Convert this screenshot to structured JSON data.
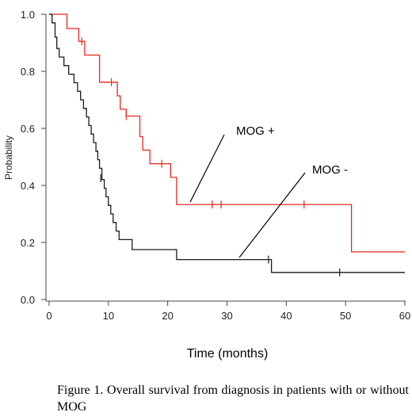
{
  "chart_data": {
    "type": "line",
    "title": "",
    "xlabel": "Time (months)",
    "ylabel": "Probability",
    "xlim": [
      0,
      60
    ],
    "ylim": [
      0,
      1.0
    ],
    "x_ticks": [
      0,
      10,
      20,
      30,
      40,
      50,
      60
    ],
    "y_ticks": [
      "0.0",
      "0.2",
      "0.4",
      "0.6",
      "0.8",
      "1.0"
    ],
    "grid": false,
    "legend": "none",
    "series": [
      {
        "name": "MOG +",
        "color": "#e8271f",
        "step": [
          [
            0,
            1.0
          ],
          [
            3,
            1.0
          ],
          [
            3,
            0.95
          ],
          [
            5,
            0.95
          ],
          [
            5,
            0.905
          ],
          [
            6,
            0.905
          ],
          [
            6,
            0.857
          ],
          [
            8.5,
            0.857
          ],
          [
            8.5,
            0.762
          ],
          [
            11.5,
            0.762
          ],
          [
            11.5,
            0.714
          ],
          [
            12,
            0.714
          ],
          [
            12,
            0.667
          ],
          [
            13,
            0.667
          ],
          [
            13,
            0.643
          ],
          [
            15.3,
            0.643
          ],
          [
            15.3,
            0.571
          ],
          [
            15.8,
            0.571
          ],
          [
            15.8,
            0.524
          ],
          [
            17,
            0.524
          ],
          [
            17,
            0.476
          ],
          [
            20.5,
            0.476
          ],
          [
            20.5,
            0.428
          ],
          [
            21.5,
            0.428
          ],
          [
            21.5,
            0.333
          ],
          [
            51,
            0.333
          ],
          [
            51,
            0.167
          ],
          [
            60,
            0.167
          ]
        ],
        "censored": [
          [
            5.5,
            0.905
          ],
          [
            10.5,
            0.762
          ],
          [
            13,
            0.643
          ],
          [
            19,
            0.476
          ],
          [
            27.5,
            0.333
          ],
          [
            29,
            0.333
          ],
          [
            43,
            0.333
          ]
        ]
      },
      {
        "name": "MOG -",
        "color": "#1a1a1a",
        "step": [
          [
            0,
            1.0
          ],
          [
            0.5,
            1.0
          ],
          [
            0.5,
            0.97
          ],
          [
            1,
            0.97
          ],
          [
            1,
            0.92
          ],
          [
            1.3,
            0.92
          ],
          [
            1.3,
            0.88
          ],
          [
            1.7,
            0.88
          ],
          [
            1.7,
            0.85
          ],
          [
            2.5,
            0.85
          ],
          [
            2.5,
            0.82
          ],
          [
            3.3,
            0.82
          ],
          [
            3.3,
            0.79
          ],
          [
            4.2,
            0.79
          ],
          [
            4.2,
            0.76
          ],
          [
            4.8,
            0.76
          ],
          [
            4.8,
            0.73
          ],
          [
            5.3,
            0.73
          ],
          [
            5.3,
            0.7
          ],
          [
            5.8,
            0.7
          ],
          [
            5.8,
            0.67
          ],
          [
            6.3,
            0.67
          ],
          [
            6.3,
            0.64
          ],
          [
            6.7,
            0.64
          ],
          [
            6.7,
            0.61
          ],
          [
            7.1,
            0.61
          ],
          [
            7.1,
            0.58
          ],
          [
            7.5,
            0.58
          ],
          [
            7.5,
            0.55
          ],
          [
            7.9,
            0.55
          ],
          [
            7.9,
            0.52
          ],
          [
            8.2,
            0.52
          ],
          [
            8.2,
            0.49
          ],
          [
            8.5,
            0.49
          ],
          [
            8.5,
            0.46
          ],
          [
            8.9,
            0.46
          ],
          [
            8.9,
            0.42
          ],
          [
            9.3,
            0.42
          ],
          [
            9.3,
            0.39
          ],
          [
            9.6,
            0.39
          ],
          [
            9.6,
            0.36
          ],
          [
            10,
            0.36
          ],
          [
            10,
            0.33
          ],
          [
            10.4,
            0.33
          ],
          [
            10.4,
            0.3
          ],
          [
            10.8,
            0.3
          ],
          [
            10.8,
            0.27
          ],
          [
            11.3,
            0.27
          ],
          [
            11.3,
            0.24
          ],
          [
            11.8,
            0.24
          ],
          [
            11.8,
            0.21
          ],
          [
            14,
            0.21
          ],
          [
            14,
            0.175
          ],
          [
            21.5,
            0.175
          ],
          [
            21.5,
            0.14
          ],
          [
            37.5,
            0.14
          ],
          [
            37.5,
            0.095
          ],
          [
            60,
            0.095
          ]
        ],
        "censored": [
          [
            8.7,
            0.425
          ],
          [
            37,
            0.14
          ],
          [
            49,
            0.095
          ]
        ]
      }
    ],
    "annotations": [
      {
        "text": "MOG +",
        "series": "MOG +"
      },
      {
        "text": "MOG -",
        "series": "MOG -"
      }
    ]
  },
  "caption": "Figure 1. Overall survival from diagnosis in patients with or without MOG"
}
